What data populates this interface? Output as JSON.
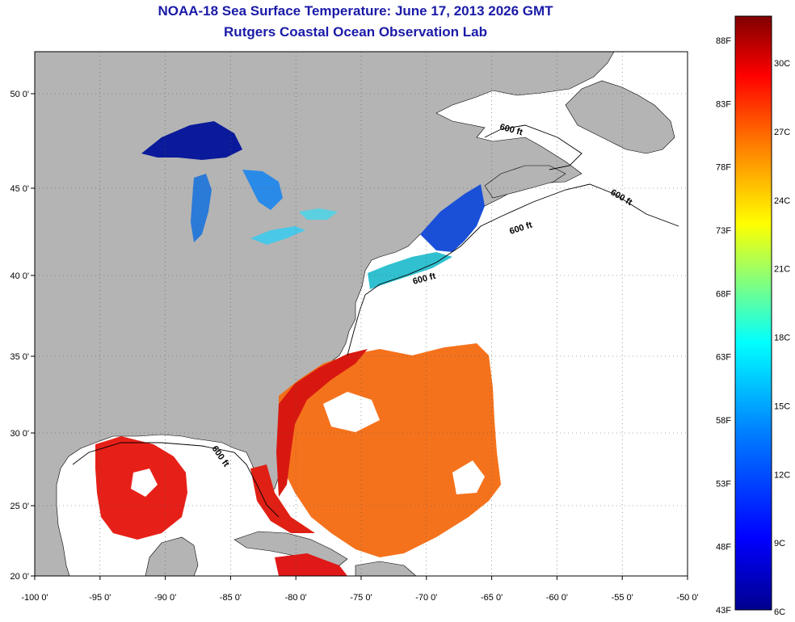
{
  "title_line1": "NOAA-18 Sea Surface Temperature:  June 17, 2013 2026 GMT",
  "title_line2": "Rutgers Coastal Ocean Observation Lab",
  "map": {
    "lon_range": [
      -100,
      -50
    ],
    "lat_range": [
      20,
      52
    ],
    "lon_ticks": [
      {
        "value": -100,
        "label": "-100 0'"
      },
      {
        "value": -95,
        "label": "-95 0'"
      },
      {
        "value": -90,
        "label": "-90 0'"
      },
      {
        "value": -85,
        "label": "-85 0'"
      },
      {
        "value": -80,
        "label": "-80 0'"
      },
      {
        "value": -75,
        "label": "-75 0'"
      },
      {
        "value": -70,
        "label": "-70 0'"
      },
      {
        "value": -65,
        "label": "-65 0'"
      },
      {
        "value": -60,
        "label": "-60 0'"
      },
      {
        "value": -55,
        "label": "-55 0'"
      },
      {
        "value": -50,
        "label": "-50 0'"
      }
    ],
    "lat_ticks": [
      {
        "value": 50,
        "label": "50 0'"
      },
      {
        "value": 45,
        "label": "45 0'"
      },
      {
        "value": 40,
        "label": "40 0'"
      },
      {
        "value": 35,
        "label": "35 0'"
      },
      {
        "value": 30,
        "label": "30 0'"
      },
      {
        "value": 25,
        "label": "25 0'"
      },
      {
        "value": 20,
        "label": "20 0'"
      }
    ],
    "contour_label": "600 ft",
    "colors": {
      "land": "#b4b4b4",
      "ocean": "#ffffff",
      "grid": "#555555"
    }
  },
  "colorbar": {
    "fahrenheit_labels": [
      "88F",
      "83F",
      "78F",
      "73F",
      "68F",
      "63F",
      "58F",
      "53F",
      "48F",
      "43F"
    ],
    "celsius_labels": [
      "30C",
      "27C",
      "24C",
      "21C",
      "18C",
      "15C",
      "12C",
      "9C",
      "6C"
    ],
    "range_celsius": [
      6,
      32
    ],
    "colors": [
      "#00008f",
      "#0000ff",
      "#0080ff",
      "#00ffff",
      "#80ff80",
      "#ffff00",
      "#ff8000",
      "#ff0000",
      "#800000"
    ]
  }
}
